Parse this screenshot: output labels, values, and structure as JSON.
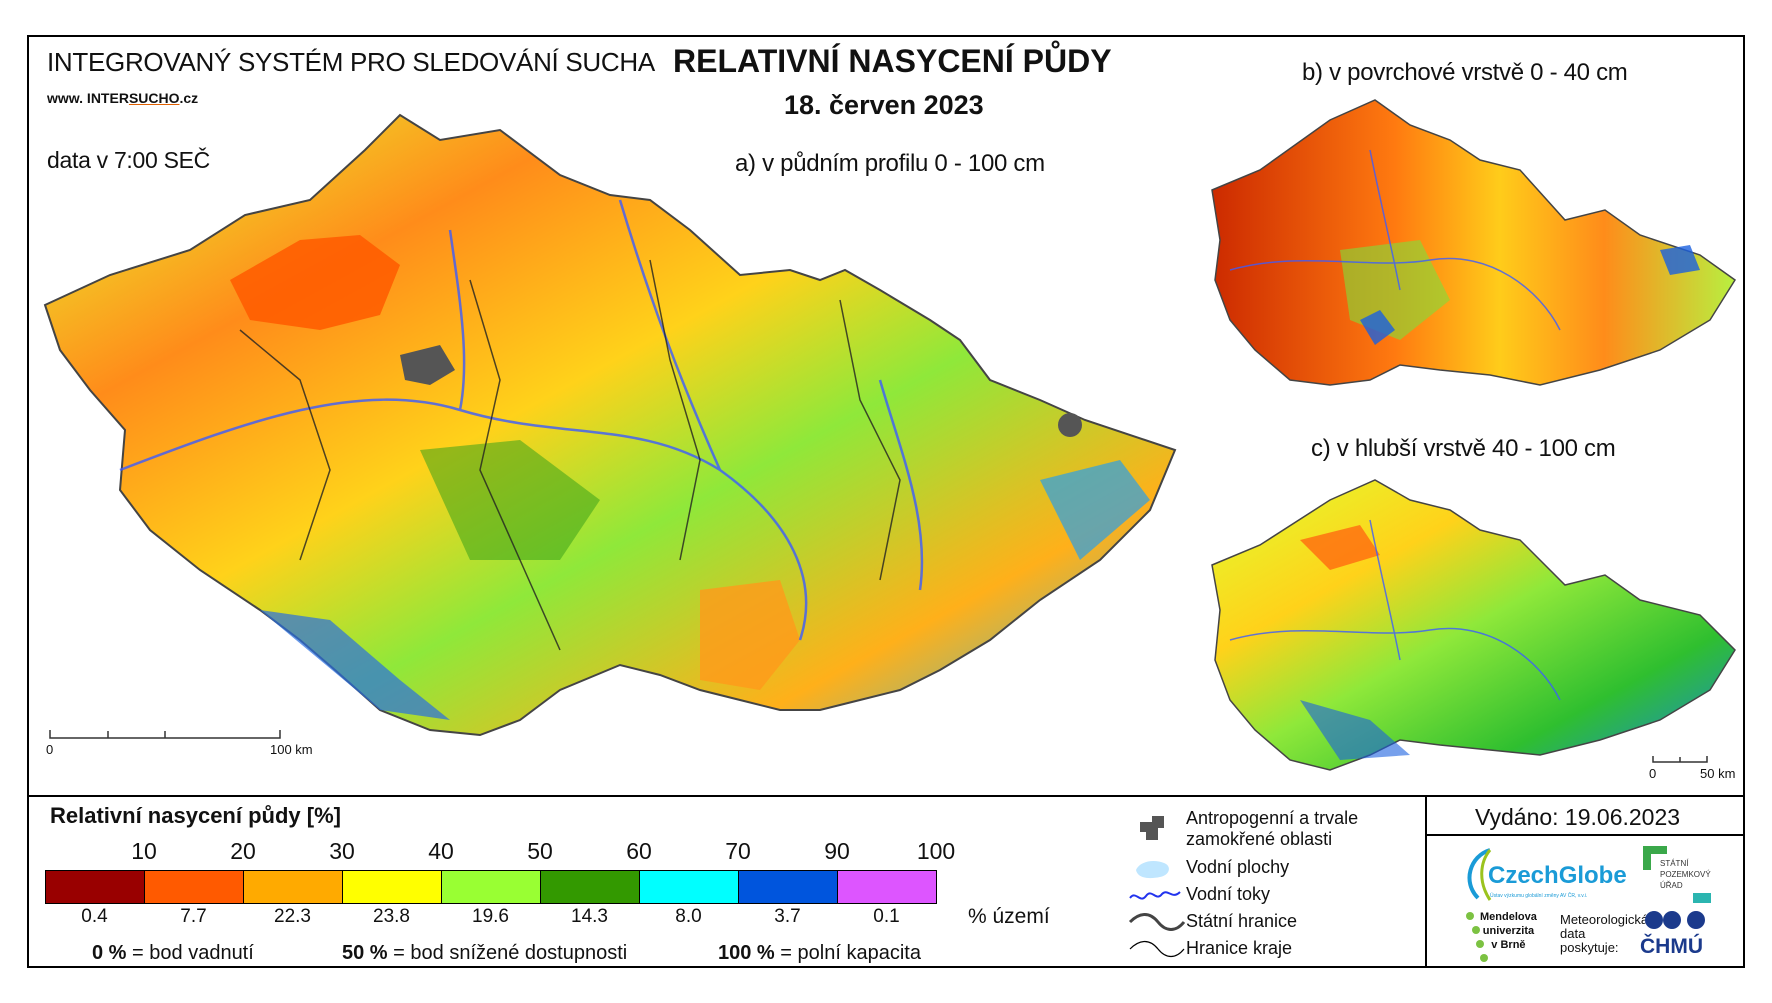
{
  "header": {
    "system_title": "INTEGROVANÝ SYSTÉM PRO SLEDOVÁNÍ SUCHA",
    "website_prefix": "www. INTER",
    "website_highlight": "SUCHO",
    "website_suffix": ".cz",
    "data_time": "data v 7:00 SEČ",
    "main_title": "RELATIVNÍ NASYCENÍ PŮDY",
    "date": "18. červen 2023"
  },
  "maps": {
    "a_label": "a) v půdním profilu 0 - 100 cm",
    "b_label": "b) v povrchové vrstvě 0 - 40 cm",
    "c_label": "c) v hlubší vrstvě 40 - 100 cm",
    "scale_main_start": "0",
    "scale_main_end": "100 km",
    "scale_small_start": "0",
    "scale_small_end": "50 km"
  },
  "legend": {
    "title": "Relativní nasycení půdy [%]",
    "thresholds": [
      "10",
      "20",
      "30",
      "40",
      "50",
      "60",
      "70",
      "90",
      "100"
    ],
    "colors": [
      "#990000",
      "#ff5a00",
      "#ffaa00",
      "#ffff00",
      "#99ff33",
      "#339900",
      "#00ffff",
      "#0055dd",
      "#dd55ff"
    ],
    "area_percent": [
      "0.4",
      "7.7",
      "22.3",
      "23.8",
      "19.6",
      "14.3",
      "8.0",
      "3.7",
      "0.1"
    ],
    "area_unit": "% území",
    "note1_value": "0 %",
    "note1_text": "= bod vadnutí",
    "note2_value": "50 %",
    "note2_text": "= bod snížené dostupnosti",
    "note3_value": "100 %",
    "note3_text": "= polní kapacita"
  },
  "symbols": {
    "anthropogenic": "Antropogenní a trvale",
    "anthropogenic_2": "zamokřené oblasti",
    "water_bodies": "Vodní plochy",
    "rivers": "Vodní toky",
    "state_border": "Státní hranice",
    "region_border": "Hranice kraje"
  },
  "issued": {
    "text": "Vydáno: 19.06.2023"
  },
  "logos": {
    "czechglobe": "CzechGlobe",
    "czechglobe_sub": "Ústav výzkumu globální změny AV ČR, v.v.i.",
    "spu_line1": "STÁTNÍ",
    "spu_line2": "POZEMKOVÝ",
    "spu_line3": "ÚŘAD",
    "mendel_line1": "Mendelova",
    "mendel_line2": "univerzita",
    "mendel_line3": "v Brně",
    "meteo_line1": "Meteorologická",
    "meteo_line2": "data",
    "meteo_line3": "poskytuje:",
    "chmu": "ČHMÚ"
  }
}
